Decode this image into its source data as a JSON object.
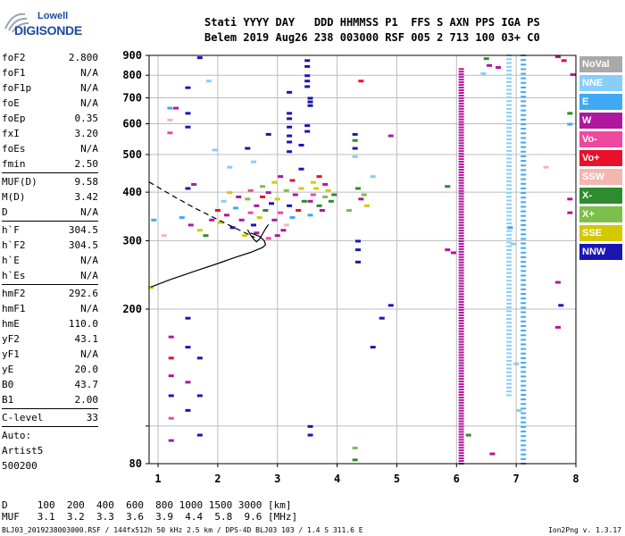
{
  "logo": {
    "brand": "Lowell",
    "brand2": "DIGISONDE"
  },
  "header": {
    "line1": "Stati YYYY DAY   DDD HHMMSS P1  FFS S AXN PPS IGA PS",
    "line2": "Belem 2019 Aug26 238 003000 RSF 005 2 713 100 03+ C0"
  },
  "sidebar": {
    "group1": [
      {
        "label": "foF2",
        "value": "2.800"
      },
      {
        "label": "foF1",
        "value": "N/A"
      },
      {
        "label": "foF1p",
        "value": "N/A"
      },
      {
        "label": "foE",
        "value": "N/A"
      },
      {
        "label": "foEp",
        "value": "0.35"
      },
      {
        "label": "fxI",
        "value": "3.20"
      },
      {
        "label": "foEs",
        "value": "N/A"
      },
      {
        "label": "fmin",
        "value": "2.50"
      }
    ],
    "group2": [
      {
        "label": "MUF(D)",
        "value": "9.58"
      },
      {
        "label": "M(D)",
        "value": "3.42"
      },
      {
        "label": "D",
        "value": "N/A"
      }
    ],
    "group3": [
      {
        "label": "h`F",
        "value": "304.5"
      },
      {
        "label": "h`F2",
        "value": "304.5"
      },
      {
        "label": "h`E",
        "value": "N/A"
      },
      {
        "label": "h`Es",
        "value": "N/A"
      }
    ],
    "group4": [
      {
        "label": "hmF2",
        "value": "292.6"
      },
      {
        "label": "hmF1",
        "value": "N/A"
      },
      {
        "label": "hmE",
        "value": "110.0"
      },
      {
        "label": "yF2",
        "value": "43.1"
      },
      {
        "label": "yF1",
        "value": "N/A"
      },
      {
        "label": "yE",
        "value": "20.0"
      },
      {
        "label": "B0",
        "value": "43.7"
      },
      {
        "label": "B1",
        "value": "2.00"
      }
    ],
    "group5": [
      {
        "label": "C-level",
        "value": "33"
      }
    ],
    "auto": [
      "Auto:",
      "Artist5",
      "500200"
    ]
  },
  "legend": [
    {
      "label": "NoVal",
      "color": "#a9a9a9"
    },
    {
      "label": "NNE",
      "color": "#87cefa"
    },
    {
      "label": "E",
      "color": "#3fa9f5"
    },
    {
      "label": "W",
      "color": "#b0169e"
    },
    {
      "label": "Vo-",
      "color": "#f0489e"
    },
    {
      "label": "Vo+",
      "color": "#e8102a"
    },
    {
      "label": "SSW",
      "color": "#f4b6b0"
    },
    {
      "label": "X-",
      "color": "#2e8b2e"
    },
    {
      "label": "X+",
      "color": "#7cbf4a"
    },
    {
      "label": "SSE",
      "color": "#d4c900"
    },
    {
      "label": "NNW",
      "color": "#1a16b4"
    }
  ],
  "footer": {
    "d_line": "D     100  200  400  600  800 1000 1500 3000 [km]",
    "muf_line": "MUF   3.1  3.2  3.3  3.6  3.9  4.4  5.8  9.6 [MHz]",
    "file": "BLJ03_2019238003000.RSF / 144fx512h 50 kHz 2.5 km / DPS-4D BLJ03 103 / 1.4 S 311.6 E",
    "version": "Ion2Png v. 1.3.17"
  },
  "chart_data": {
    "type": "scatter",
    "title": "",
    "xlabel": "",
    "ylabel": "",
    "xlim": [
      0.85,
      8.0
    ],
    "ylim": [
      80,
      900
    ],
    "x_ticks": [
      1,
      2,
      3,
      4,
      5,
      6,
      7,
      8
    ],
    "y_ticks": [
      80,
      100,
      200,
      300,
      400,
      500,
      600,
      700,
      800,
      900
    ],
    "y_tick_labels": [
      "80",
      "",
      "200",
      "300",
      "400",
      "500",
      "600",
      "700",
      "800",
      "900"
    ],
    "grid": true,
    "profile_solid": [
      [
        0.88,
        228
      ],
      [
        1.2,
        238
      ],
      [
        1.6,
        250
      ],
      [
        2.0,
        262
      ],
      [
        2.3,
        272
      ],
      [
        2.55,
        280
      ],
      [
        2.75,
        288
      ],
      [
        2.8,
        293
      ],
      [
        2.78,
        300
      ],
      [
        2.7,
        308
      ],
      [
        2.55,
        314
      ]
    ],
    "profile_dashed": [
      [
        0.85,
        425
      ],
      [
        1.2,
        395
      ],
      [
        1.6,
        365
      ],
      [
        2.0,
        340
      ],
      [
        2.3,
        323
      ],
      [
        2.5,
        312
      ],
      [
        2.62,
        306
      ]
    ],
    "trace": [
      [
        2.5,
        320
      ],
      [
        2.55,
        310
      ],
      [
        2.6,
        303
      ],
      [
        2.65,
        298
      ],
      [
        2.7,
        303
      ],
      [
        2.75,
        312
      ],
      [
        2.8,
        322
      ],
      [
        2.85,
        330
      ]
    ],
    "vertical_traces": [
      {
        "name": "W",
        "x": 6.08,
        "y_from": 80,
        "y_to": 830
      },
      {
        "name": "E",
        "x": 7.12,
        "y_from": 80,
        "y_to": 900
      },
      {
        "name": "NNE",
        "x": 6.88,
        "y_from": 120,
        "y_to": 900
      }
    ],
    "echoes": [
      {
        "x": 1.22,
        "y": 170,
        "c": "W"
      },
      {
        "x": 1.22,
        "y": 150,
        "c": "Vo+"
      },
      {
        "x": 1.22,
        "y": 135,
        "c": "W"
      },
      {
        "x": 1.22,
        "y": 120,
        "c": "NNW"
      },
      {
        "x": 1.22,
        "y": 105,
        "c": "Vo-"
      },
      {
        "x": 1.22,
        "y": 92,
        "c": "W"
      },
      {
        "x": 1.5,
        "y": 190,
        "c": "NNW"
      },
      {
        "x": 1.5,
        "y": 160,
        "c": "NNW"
      },
      {
        "x": 1.5,
        "y": 130,
        "c": "W"
      },
      {
        "x": 1.5,
        "y": 110,
        "c": "NNW"
      },
      {
        "x": 1.7,
        "y": 150,
        "c": "NNW"
      },
      {
        "x": 1.7,
        "y": 120,
        "c": "NNW"
      },
      {
        "x": 1.7,
        "y": 95,
        "c": "NNW"
      },
      {
        "x": 1.5,
        "y": 745,
        "c": "NNW"
      },
      {
        "x": 1.5,
        "y": 640,
        "c": "NNW"
      },
      {
        "x": 1.5,
        "y": 590,
        "c": "NNW"
      },
      {
        "x": 1.5,
        "y": 410,
        "c": "NNW"
      },
      {
        "x": 1.7,
        "y": 890,
        "c": "NNW"
      },
      {
        "x": 1.85,
        "y": 775,
        "c": "NNE"
      },
      {
        "x": 1.2,
        "y": 660,
        "c": "E"
      },
      {
        "x": 1.2,
        "y": 615,
        "c": "SSW"
      },
      {
        "x": 1.2,
        "y": 570,
        "c": "Vo-"
      },
      {
        "x": 1.6,
        "y": 420,
        "c": "W"
      },
      {
        "x": 1.4,
        "y": 345,
        "c": "E"
      },
      {
        "x": 1.55,
        "y": 330,
        "c": "W"
      },
      {
        "x": 1.7,
        "y": 320,
        "c": "SSE"
      },
      {
        "x": 1.8,
        "y": 310,
        "c": "X-"
      },
      {
        "x": 1.9,
        "y": 340,
        "c": "W"
      },
      {
        "x": 2.0,
        "y": 360,
        "c": "Vo+"
      },
      {
        "x": 2.05,
        "y": 335,
        "c": "SSE"
      },
      {
        "x": 2.1,
        "y": 380,
        "c": "NNE"
      },
      {
        "x": 2.15,
        "y": 350,
        "c": "W"
      },
      {
        "x": 2.25,
        "y": 325,
        "c": "NNW"
      },
      {
        "x": 2.3,
        "y": 365,
        "c": "E"
      },
      {
        "x": 2.4,
        "y": 340,
        "c": "W"
      },
      {
        "x": 2.45,
        "y": 310,
        "c": "SSE"
      },
      {
        "x": 2.5,
        "y": 385,
        "c": "X+"
      },
      {
        "x": 2.55,
        "y": 355,
        "c": "Vo-"
      },
      {
        "x": 2.6,
        "y": 330,
        "c": "NNW"
      },
      {
        "x": 2.65,
        "y": 370,
        "c": "W"
      },
      {
        "x": 2.7,
        "y": 345,
        "c": "SSE"
      },
      {
        "x": 2.75,
        "y": 390,
        "c": "Vo+"
      },
      {
        "x": 2.8,
        "y": 360,
        "c": "X-"
      },
      {
        "x": 2.85,
        "y": 400,
        "c": "W"
      },
      {
        "x": 2.9,
        "y": 375,
        "c": "NNW"
      },
      {
        "x": 2.95,
        "y": 340,
        "c": "W"
      },
      {
        "x": 3.0,
        "y": 385,
        "c": "SSE"
      },
      {
        "x": 3.05,
        "y": 355,
        "c": "Vo-"
      },
      {
        "x": 3.1,
        "y": 320,
        "c": "W"
      },
      {
        "x": 3.15,
        "y": 405,
        "c": "X+"
      },
      {
        "x": 3.2,
        "y": 370,
        "c": "NNW"
      },
      {
        "x": 3.25,
        "y": 345,
        "c": "E"
      },
      {
        "x": 3.3,
        "y": 395,
        "c": "W"
      },
      {
        "x": 3.35,
        "y": 360,
        "c": "Vo+"
      },
      {
        "x": 3.4,
        "y": 410,
        "c": "SSE"
      },
      {
        "x": 3.45,
        "y": 380,
        "c": "X-"
      },
      {
        "x": 2.55,
        "y": 405,
        "c": "Vo-"
      },
      {
        "x": 2.75,
        "y": 415,
        "c": "X+"
      },
      {
        "x": 2.95,
        "y": 425,
        "c": "SSE"
      },
      {
        "x": 3.05,
        "y": 440,
        "c": "W"
      },
      {
        "x": 3.25,
        "y": 430,
        "c": "Vo+"
      },
      {
        "x": 2.65,
        "y": 315,
        "c": "W"
      },
      {
        "x": 2.85,
        "y": 305,
        "c": "Vo-"
      },
      {
        "x": 3.0,
        "y": 310,
        "c": "W"
      },
      {
        "x": 3.15,
        "y": 330,
        "c": "SSW"
      },
      {
        "x": 2.35,
        "y": 390,
        "c": "W"
      },
      {
        "x": 2.2,
        "y": 400,
        "c": "SSE"
      },
      {
        "x": 3.55,
        "y": 380,
        "c": "W"
      },
      {
        "x": 3.6,
        "y": 395,
        "c": "Vo-"
      },
      {
        "x": 3.65,
        "y": 410,
        "c": "SSE"
      },
      {
        "x": 3.7,
        "y": 370,
        "c": "X-"
      },
      {
        "x": 3.75,
        "y": 360,
        "c": "W"
      },
      {
        "x": 3.8,
        "y": 390,
        "c": "X+"
      },
      {
        "x": 3.85,
        "y": 405,
        "c": "SSE"
      },
      {
        "x": 3.9,
        "y": 380,
        "c": "X-"
      },
      {
        "x": 3.6,
        "y": 425,
        "c": "SSE"
      },
      {
        "x": 3.7,
        "y": 440,
        "c": "Vo+"
      },
      {
        "x": 3.8,
        "y": 420,
        "c": "W"
      },
      {
        "x": 3.55,
        "y": 350,
        "c": "E"
      },
      {
        "x": 3.95,
        "y": 395,
        "c": "X-"
      },
      {
        "x": 3.5,
        "y": 875,
        "c": "NNW"
      },
      {
        "x": 3.5,
        "y": 845,
        "c": "NNW"
      },
      {
        "x": 3.5,
        "y": 800,
        "c": "NNW"
      },
      {
        "x": 3.5,
        "y": 775,
        "c": "NNW"
      },
      {
        "x": 3.5,
        "y": 750,
        "c": "NNW"
      },
      {
        "x": 3.55,
        "y": 700,
        "c": "NNW"
      },
      {
        "x": 3.55,
        "y": 685,
        "c": "NNW"
      },
      {
        "x": 3.55,
        "y": 670,
        "c": "NNW"
      },
      {
        "x": 3.2,
        "y": 725,
        "c": "NNW"
      },
      {
        "x": 3.2,
        "y": 640,
        "c": "NNW"
      },
      {
        "x": 3.2,
        "y": 620,
        "c": "NNW"
      },
      {
        "x": 3.2,
        "y": 590,
        "c": "NNW"
      },
      {
        "x": 3.2,
        "y": 560,
        "c": "NNW"
      },
      {
        "x": 3.2,
        "y": 540,
        "c": "NNW"
      },
      {
        "x": 3.2,
        "y": 510,
        "c": "NNW"
      },
      {
        "x": 3.5,
        "y": 595,
        "c": "NNW"
      },
      {
        "x": 3.5,
        "y": 575,
        "c": "NNW"
      },
      {
        "x": 3.4,
        "y": 530,
        "c": "NNW"
      },
      {
        "x": 3.4,
        "y": 460,
        "c": "NNW"
      },
      {
        "x": 2.85,
        "y": 565,
        "c": "NNW"
      },
      {
        "x": 2.5,
        "y": 520,
        "c": "NNW"
      },
      {
        "x": 2.6,
        "y": 480,
        "c": "NNE"
      },
      {
        "x": 2.2,
        "y": 465,
        "c": "NNE"
      },
      {
        "x": 1.95,
        "y": 515,
        "c": "NNE"
      },
      {
        "x": 4.3,
        "y": 565,
        "c": "NNW"
      },
      {
        "x": 4.3,
        "y": 545,
        "c": "X-"
      },
      {
        "x": 4.3,
        "y": 520,
        "c": "NNW"
      },
      {
        "x": 4.3,
        "y": 495,
        "c": "NNE"
      },
      {
        "x": 4.35,
        "y": 410,
        "c": "X-"
      },
      {
        "x": 4.4,
        "y": 385,
        "c": "W"
      },
      {
        "x": 4.45,
        "y": 395,
        "c": "X+"
      },
      {
        "x": 4.5,
        "y": 370,
        "c": "SSE"
      },
      {
        "x": 4.35,
        "y": 300,
        "c": "NNW"
      },
      {
        "x": 4.35,
        "y": 285,
        "c": "NNW"
      },
      {
        "x": 4.35,
        "y": 265,
        "c": "NNW"
      },
      {
        "x": 4.6,
        "y": 440,
        "c": "NNE"
      },
      {
        "x": 4.2,
        "y": 360,
        "c": "X+"
      },
      {
        "x": 4.4,
        "y": 775,
        "c": "Vo+"
      },
      {
        "x": 4.9,
        "y": 560,
        "c": "W"
      },
      {
        "x": 4.6,
        "y": 160,
        "c": "NNW"
      },
      {
        "x": 4.75,
        "y": 190,
        "c": "NNW"
      },
      {
        "x": 4.9,
        "y": 205,
        "c": "NNW"
      },
      {
        "x": 4.3,
        "y": 88,
        "c": "X+"
      },
      {
        "x": 4.3,
        "y": 82,
        "c": "X-"
      },
      {
        "x": 3.55,
        "y": 100,
        "c": "NNW"
      },
      {
        "x": 3.55,
        "y": 95,
        "c": "NNW"
      },
      {
        "x": 5.85,
        "y": 415,
        "c": "X-"
      },
      {
        "x": 5.85,
        "y": 285,
        "c": "W"
      },
      {
        "x": 5.95,
        "y": 280,
        "c": "W"
      },
      {
        "x": 6.5,
        "y": 885,
        "c": "X-"
      },
      {
        "x": 6.55,
        "y": 850,
        "c": "W"
      },
      {
        "x": 6.7,
        "y": 840,
        "c": "W"
      },
      {
        "x": 6.45,
        "y": 810,
        "c": "NNE"
      },
      {
        "x": 6.9,
        "y": 325,
        "c": "E"
      },
      {
        "x": 6.95,
        "y": 295,
        "c": "NNE"
      },
      {
        "x": 7.5,
        "y": 465,
        "c": "SSW"
      },
      {
        "x": 7.7,
        "y": 235,
        "c": "W"
      },
      {
        "x": 7.75,
        "y": 205,
        "c": "NNW"
      },
      {
        "x": 7.7,
        "y": 180,
        "c": "W"
      },
      {
        "x": 7.9,
        "y": 385,
        "c": "W"
      },
      {
        "x": 7.9,
        "y": 355,
        "c": "W"
      },
      {
        "x": 7.9,
        "y": 640,
        "c": "X-"
      },
      {
        "x": 7.9,
        "y": 600,
        "c": "E"
      },
      {
        "x": 7.95,
        "y": 805,
        "c": "W"
      },
      {
        "x": 7.7,
        "y": 895,
        "c": "W"
      },
      {
        "x": 7.8,
        "y": 875,
        "c": "Vo+"
      },
      {
        "x": 7.0,
        "y": 145,
        "c": "NNE"
      },
      {
        "x": 7.05,
        "y": 110,
        "c": "NNE"
      },
      {
        "x": 6.6,
        "y": 85,
        "c": "W"
      },
      {
        "x": 6.2,
        "y": 95,
        "c": "X-"
      },
      {
        "x": 0.93,
        "y": 340,
        "c": "E"
      },
      {
        "x": 1.1,
        "y": 310,
        "c": "SSW"
      },
      {
        "x": 0.88,
        "y": 228,
        "c": "SSE"
      },
      {
        "x": 1.3,
        "y": 660,
        "c": "W"
      }
    ]
  }
}
